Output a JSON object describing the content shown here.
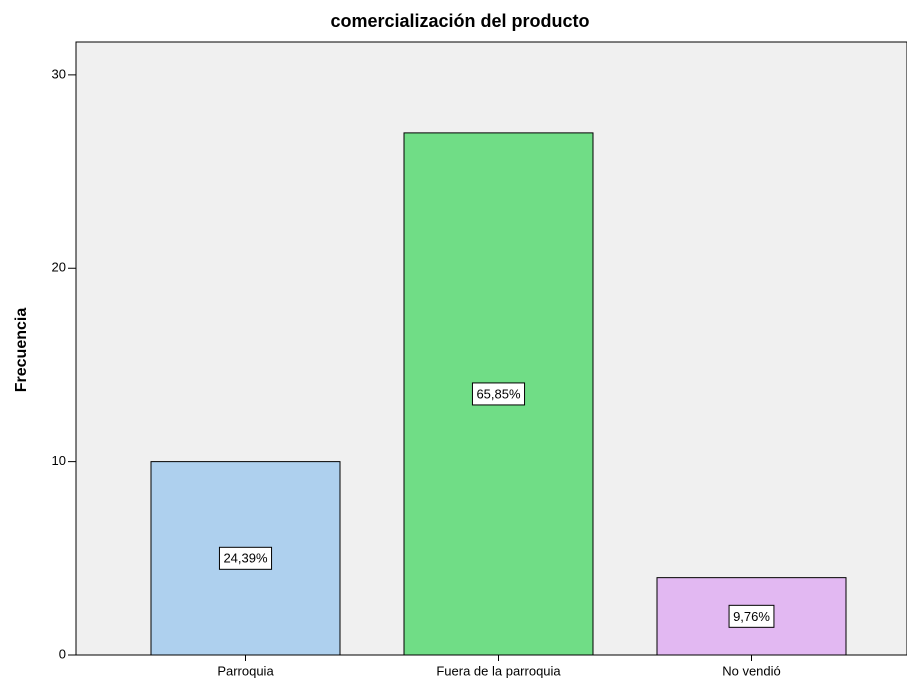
{
  "chart_data": {
    "type": "bar",
    "title": "comercialización del producto",
    "y_label": "Frecuencia",
    "categories": [
      "Parroquia",
      "Fuera de la parroquia",
      "No vendió"
    ],
    "values": [
      10,
      27,
      4
    ],
    "percentage_labels": [
      "24,39%",
      "65,85%",
      "9,76%"
    ],
    "colors": [
      "#aed0ee",
      "#70dd86",
      "#e2b8f2"
    ],
    "ylim": [
      0,
      31.7
    ],
    "yticks": [
      0,
      10,
      20,
      30
    ]
  }
}
